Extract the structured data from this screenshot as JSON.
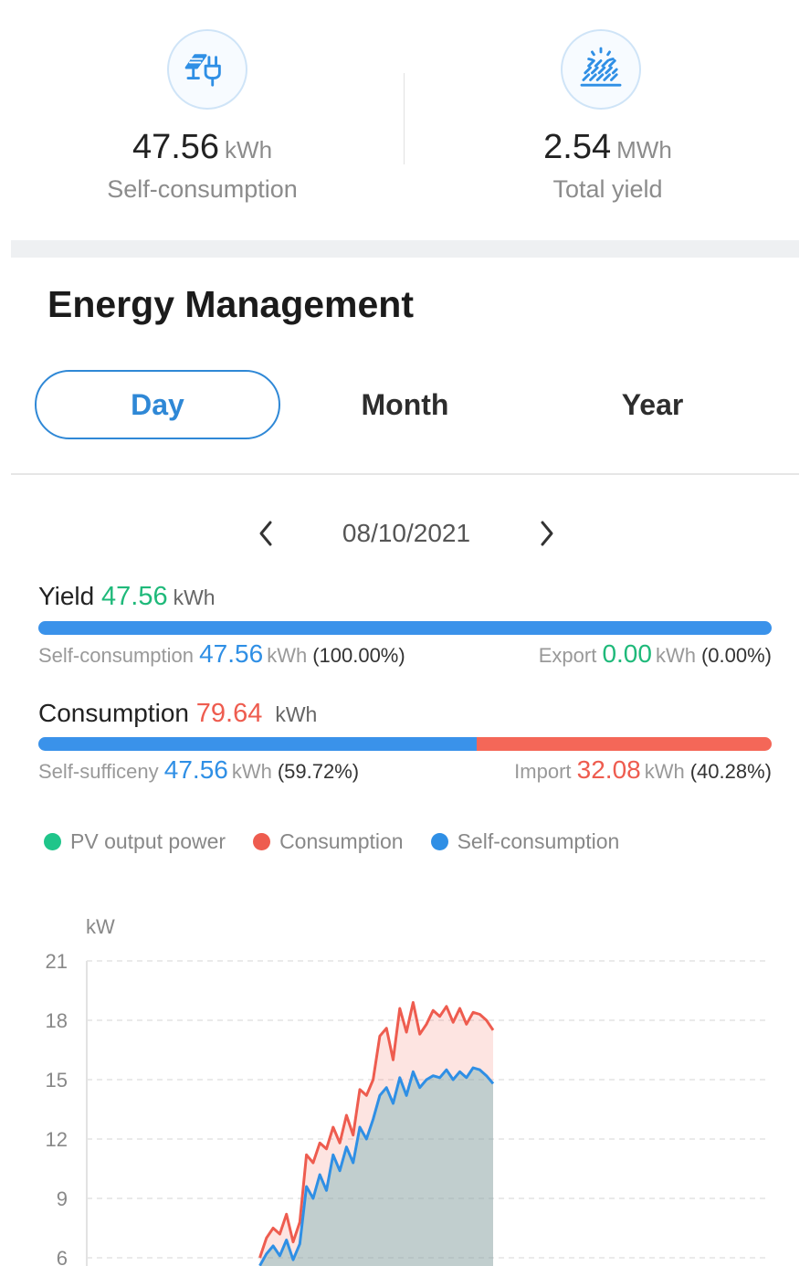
{
  "stats": {
    "self_consumption": {
      "value": "47.56",
      "unit": "kWh",
      "label": "Self-consumption",
      "icon": "solar-panel-plug-icon"
    },
    "total_yield": {
      "value": "2.54",
      "unit": "MWh",
      "label": "Total yield",
      "icon": "solar-panel-sun-icon"
    }
  },
  "section": {
    "title": "Energy Management"
  },
  "tabs": [
    {
      "label": "Day",
      "active": true
    },
    {
      "label": "Month",
      "active": false
    },
    {
      "label": "Year",
      "active": false
    }
  ],
  "date": {
    "value": "08/10/2021",
    "prev_icon": "chevron-left-icon",
    "next_icon": "chevron-right-icon"
  },
  "yield": {
    "label": "Yield",
    "value": "47.56",
    "unit": "kWh",
    "self_consumption": {
      "label": "Self-consumption",
      "value": "47.56",
      "unit": "kWh",
      "pct": "(100.00%)",
      "fraction": 1.0
    },
    "export": {
      "label": "Export",
      "value": "0.00",
      "unit": "kWh",
      "pct": "(0.00%)",
      "fraction": 0.0
    }
  },
  "consumption": {
    "label": "Consumption",
    "value": "79.64",
    "unit": "kWh",
    "self_sufficiency": {
      "label": "Self-sufficeny",
      "value": "47.56",
      "unit": "kWh",
      "pct": "(59.72%)",
      "fraction": 0.5972
    },
    "import": {
      "label": "Import",
      "value": "32.08",
      "unit": "kWh",
      "pct": "(40.28%)",
      "fraction": 0.4028
    }
  },
  "legend": [
    {
      "label": "PV output power",
      "color": "#1fc58a"
    },
    {
      "label": "Consumption",
      "color": "#ee5c4f"
    },
    {
      "label": "Self-consumption",
      "color": "#2f8fe5"
    }
  ],
  "chart_data": {
    "type": "area",
    "ylabel": "kW",
    "yticks": [
      21,
      18,
      15,
      12,
      9,
      6
    ],
    "ylim": [
      6,
      21
    ],
    "grid": true,
    "x": [
      0.3,
      0.32,
      0.34,
      0.36,
      0.38,
      0.4,
      0.42,
      0.44,
      0.46,
      0.48,
      0.5,
      0.52,
      0.54,
      0.56,
      0.58,
      0.6,
      0.62,
      0.64,
      0.66,
      0.68,
      0.7,
      0.72,
      0.74,
      0.76,
      0.78,
      0.8,
      0.82,
      0.84,
      0.86,
      0.88,
      0.9,
      0.92,
      0.94,
      0.96,
      0.98,
      1.0
    ],
    "series": [
      {
        "name": "Consumption",
        "color": "#ee5c4f",
        "values": [
          6.0,
          7.0,
          7.5,
          7.2,
          8.2,
          6.8,
          7.8,
          11.2,
          10.8,
          11.8,
          11.5,
          12.6,
          11.8,
          13.2,
          12.2,
          14.5,
          14.2,
          15.0,
          17.2,
          17.6,
          16.0,
          18.6,
          17.4,
          18.9,
          17.3,
          17.8,
          18.5,
          18.2,
          18.7,
          17.9,
          18.6,
          17.8,
          18.4,
          18.3,
          18.0,
          17.5
        ]
      },
      {
        "name": "Self-consumption",
        "color": "#2f8fe5",
        "values": [
          5.6,
          6.2,
          6.6,
          6.1,
          6.9,
          5.9,
          6.7,
          9.6,
          9.0,
          10.2,
          9.4,
          11.2,
          10.4,
          11.6,
          10.8,
          12.6,
          12.0,
          13.0,
          14.2,
          14.6,
          13.8,
          15.1,
          14.2,
          15.4,
          14.6,
          15.0,
          15.2,
          15.1,
          15.5,
          15.0,
          15.4,
          15.1,
          15.6,
          15.5,
          15.2,
          14.8
        ]
      }
    ]
  }
}
